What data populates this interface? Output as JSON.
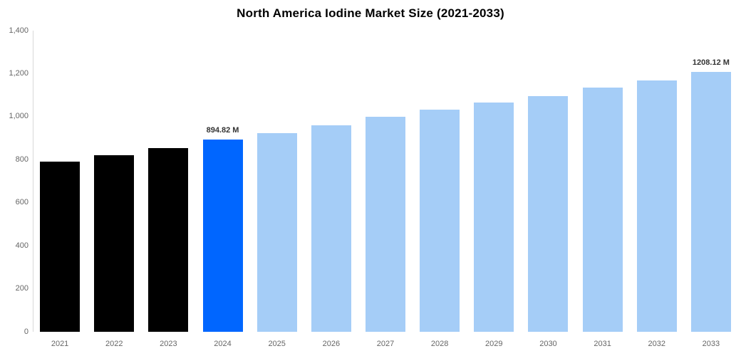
{
  "title": "North America Iodine Market Size (2021-2033)",
  "chart_data": {
    "type": "bar",
    "title": "North America Iodine Market Size (2021-2033)",
    "xlabel": "",
    "ylabel": "",
    "categories": [
      "2021",
      "2022",
      "2023",
      "2024",
      "2025",
      "2026",
      "2027",
      "2028",
      "2029",
      "2030",
      "2031",
      "2032",
      "2033"
    ],
    "values": [
      790,
      822,
      855,
      894.82,
      925,
      960,
      1000,
      1033,
      1066,
      1096,
      1134,
      1169,
      1208.12
    ],
    "unit": "M",
    "ylim": [
      0,
      1400
    ],
    "ytick_interval": 200,
    "ytick_values": [
      0,
      200,
      400,
      600,
      800,
      1000,
      1200,
      1400
    ],
    "ytick_labels": [
      "0",
      "200",
      "400",
      "600",
      "800",
      "1,000",
      "1,200",
      "1,400"
    ],
    "grid": false,
    "legend": "none",
    "bar_colors": [
      "#000000",
      "#000000",
      "#000000",
      "#0066FF",
      "#A5CDF7",
      "#A5CDF7",
      "#A5CDF7",
      "#A5CDF7",
      "#A5CDF7",
      "#A5CDF7",
      "#A5CDF7",
      "#A5CDF7",
      "#A5CDF7"
    ],
    "color_legend_meaning": {
      "historical": "#000000",
      "current_year_highlight": "#0066FF",
      "forecast": "#A5CDF7"
    },
    "annotations": [
      {
        "category": "2024",
        "text": "894.82 M"
      },
      {
        "category": "2033",
        "text": "1208.12 M"
      }
    ]
  }
}
